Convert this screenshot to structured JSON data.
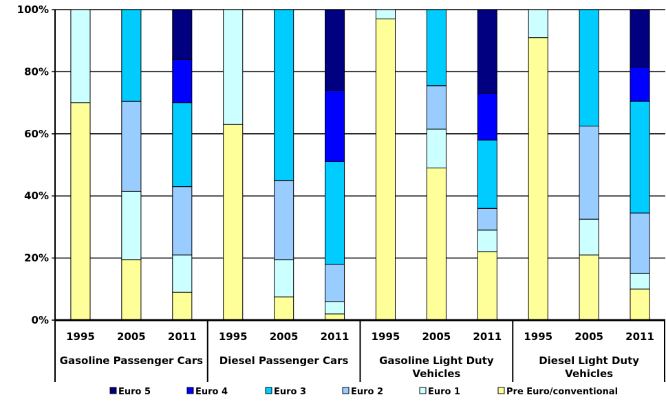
{
  "chart_data": {
    "type": "bar",
    "stacked": true,
    "percent_stacked": true,
    "title": "",
    "xlabel": "",
    "ylabel": "",
    "ylim": [
      0,
      100
    ],
    "yticks": [
      "0%",
      "20%",
      "40%",
      "60%",
      "80%",
      "100%"
    ],
    "grid": true,
    "legend_position": "bottom",
    "groups": [
      {
        "label": "Gasoline Passenger Cars",
        "categories": [
          "1995",
          "2005",
          "2011"
        ]
      },
      {
        "label": "Diesel Passenger Cars",
        "categories": [
          "1995",
          "2005",
          "2011"
        ]
      },
      {
        "label": "Gasoline Light Duty Vehicles",
        "categories": [
          "1995",
          "2005",
          "2011"
        ]
      },
      {
        "label": "Diesel Light Duty Vehicles",
        "categories": [
          "1995",
          "2005",
          "2011"
        ]
      }
    ],
    "series": [
      {
        "name": "Pre Euro/conventional",
        "color": "#FFFF99",
        "values": [
          70,
          19.5,
          9,
          63,
          7.5,
          2,
          97,
          49,
          22,
          91,
          21,
          10
        ]
      },
      {
        "name": "Euro 1",
        "color": "#CCFFFF",
        "values": [
          30,
          22,
          12,
          37,
          12,
          4,
          3,
          12.5,
          7,
          9,
          11.5,
          5
        ]
      },
      {
        "name": "Euro 2",
        "color": "#99CCFF",
        "values": [
          0,
          29,
          22,
          0,
          25.5,
          12,
          0,
          14,
          7,
          0,
          30,
          19.5
        ]
      },
      {
        "name": "Euro 3",
        "color": "#00CCFF",
        "values": [
          0,
          29.5,
          27,
          0,
          55,
          33,
          0,
          24.5,
          22,
          0,
          37.5,
          36
        ]
      },
      {
        "name": "Euro 4",
        "color": "#0000FF",
        "values": [
          0,
          0,
          14,
          0,
          0,
          23,
          0,
          0,
          15,
          0,
          0,
          11
        ]
      },
      {
        "name": "Euro 5",
        "color": "#000080",
        "values": [
          0,
          0,
          16,
          0,
          0,
          26,
          0,
          0,
          27,
          0,
          0,
          18.5
        ]
      }
    ],
    "legend_order": [
      "Euro 5",
      "Euro 4",
      "Euro 3",
      "Euro 2",
      "Euro 1",
      "Pre Euro/conventional"
    ]
  }
}
